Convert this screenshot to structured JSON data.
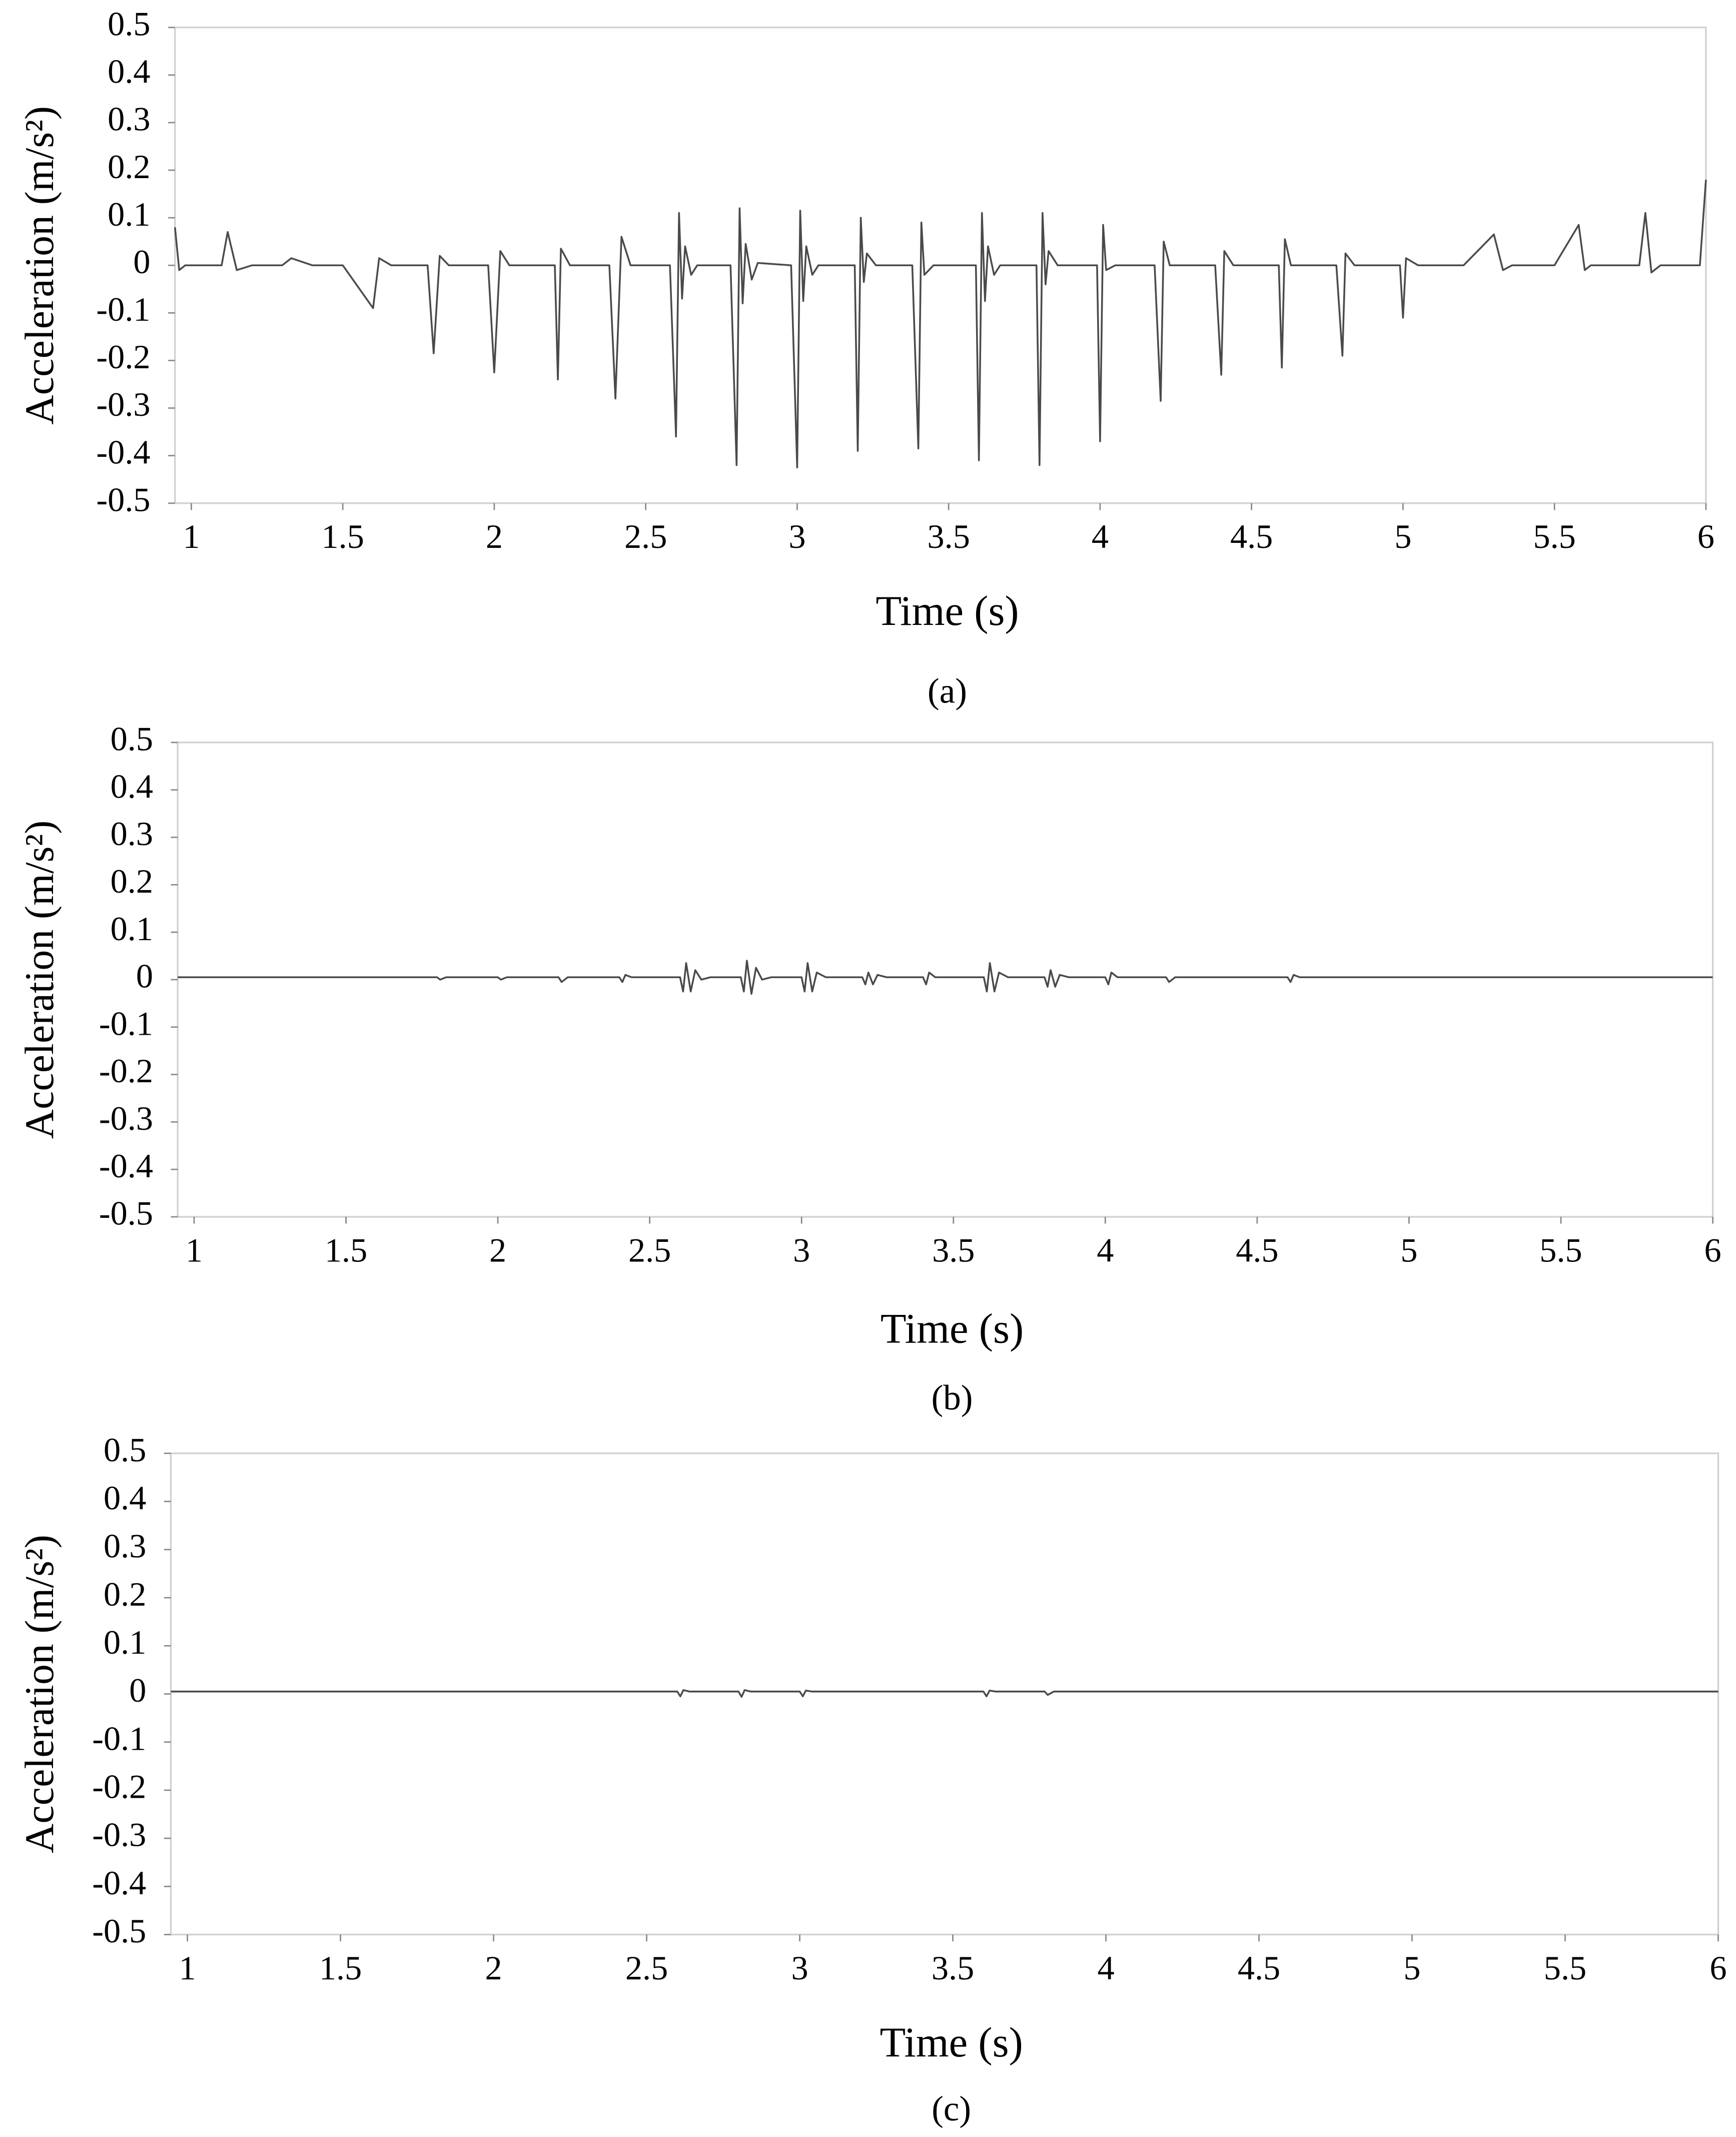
{
  "chart_data": [
    {
      "type": "line",
      "xlabel": "Time (s)",
      "ylabel": "Acceleration (m/s²)",
      "caption": "(a)",
      "color": "#4a4a4a",
      "xlim": [
        0.946,
        6
      ],
      "ylim": [
        -0.5,
        0.5
      ],
      "xticks": [
        1,
        1.5,
        2,
        2.5,
        3,
        3.5,
        4,
        4.5,
        5,
        5.5,
        6
      ],
      "yticks": [
        -0.5,
        -0.4,
        -0.3,
        -0.2,
        -0.1,
        0,
        0.1,
        0.2,
        0.3,
        0.4,
        0.5
      ],
      "x": [
        0.946,
        0.96,
        0.98,
        1.1,
        1.12,
        1.15,
        1.2,
        1.3,
        1.33,
        1.4,
        1.5,
        1.6,
        1.62,
        1.66,
        1.78,
        1.8,
        1.82,
        1.85,
        1.98,
        2.0,
        2.02,
        2.05,
        2.2,
        2.21,
        2.22,
        2.25,
        2.38,
        2.4,
        2.42,
        2.45,
        2.58,
        2.6,
        2.61,
        2.62,
        2.63,
        2.65,
        2.67,
        2.78,
        2.8,
        2.81,
        2.82,
        2.83,
        2.85,
        2.87,
        2.98,
        3.0,
        3.01,
        3.02,
        3.03,
        3.05,
        3.07,
        3.19,
        3.2,
        3.21,
        3.22,
        3.23,
        3.26,
        3.38,
        3.4,
        3.41,
        3.42,
        3.45,
        3.59,
        3.6,
        3.61,
        3.62,
        3.63,
        3.65,
        3.67,
        3.79,
        3.8,
        3.81,
        3.82,
        3.83,
        3.86,
        3.99,
        4.0,
        4.01,
        4.02,
        4.05,
        4.18,
        4.2,
        4.21,
        4.23,
        4.38,
        4.4,
        4.41,
        4.44,
        4.59,
        4.6,
        4.61,
        4.63,
        4.78,
        4.8,
        4.81,
        4.84,
        4.99,
        5.0,
        5.01,
        5.05,
        5.2,
        5.3,
        5.33,
        5.36,
        5.5,
        5.58,
        5.6,
        5.62,
        5.78,
        5.8,
        5.82,
        5.85,
        5.98,
        6.0
      ],
      "values": [
        0.08,
        -0.01,
        0,
        0,
        0.07,
        -0.01,
        0,
        0,
        0.015,
        0,
        0,
        -0.09,
        0.015,
        0,
        0,
        -0.185,
        0.02,
        0,
        0,
        -0.225,
        0.03,
        0,
        0,
        -0.24,
        0.035,
        0,
        0,
        -0.28,
        0.06,
        0,
        0,
        -0.36,
        0.11,
        -0.07,
        0.04,
        -0.02,
        0,
        0,
        -0.42,
        0.12,
        -0.08,
        0.045,
        -0.03,
        0.005,
        0,
        -0.425,
        0.115,
        -0.075,
        0.04,
        -0.02,
        0,
        0,
        -0.39,
        0.1,
        -0.035,
        0.025,
        0,
        0,
        -0.385,
        0.09,
        -0.02,
        0,
        0,
        -0.41,
        0.11,
        -0.075,
        0.04,
        -0.02,
        0,
        0,
        -0.42,
        0.11,
        -0.04,
        0.03,
        0,
        0,
        -0.37,
        0.085,
        -0.01,
        0,
        0,
        -0.285,
        0.05,
        0,
        0,
        -0.23,
        0.03,
        0,
        0,
        -0.215,
        0.055,
        0,
        0,
        -0.19,
        0.025,
        0,
        0,
        -0.11,
        0.015,
        0,
        0,
        0.065,
        -0.01,
        0,
        0,
        0.085,
        -0.01,
        0,
        0,
        0.11,
        -0.015,
        0,
        0,
        0.18
      ]
    },
    {
      "type": "line",
      "xlabel": "Time (s)",
      "ylabel": "Acceleration (m/s²)",
      "caption": "(b)",
      "color": "#4a4a4a",
      "xlim": [
        0.946,
        6
      ],
      "ylim": [
        -0.5,
        0.5
      ],
      "xticks": [
        1,
        1.5,
        2,
        2.5,
        3,
        3.5,
        4,
        4.5,
        5,
        5.5,
        6
      ],
      "yticks": [
        -0.5,
        -0.4,
        -0.3,
        -0.2,
        -0.1,
        0,
        0.1,
        0.2,
        0.3,
        0.4,
        0.5
      ],
      "x": [
        0.946,
        1.8,
        1.81,
        1.83,
        2.0,
        2.01,
        2.03,
        2.2,
        2.21,
        2.23,
        2.4,
        2.41,
        2.42,
        2.44,
        2.6,
        2.61,
        2.62,
        2.635,
        2.65,
        2.67,
        2.7,
        2.8,
        2.81,
        2.82,
        2.835,
        2.85,
        2.87,
        2.9,
        3.0,
        3.01,
        3.02,
        3.035,
        3.05,
        3.08,
        3.2,
        3.21,
        3.22,
        3.235,
        3.25,
        3.28,
        3.4,
        3.41,
        3.42,
        3.44,
        3.6,
        3.61,
        3.62,
        3.635,
        3.65,
        3.68,
        3.8,
        3.81,
        3.82,
        3.835,
        3.85,
        3.88,
        4.0,
        4.01,
        4.02,
        4.04,
        4.2,
        4.21,
        4.23,
        4.6,
        4.61,
        4.62,
        4.64,
        6.0
      ],
      "values": [
        0.005,
        0.005,
        0,
        0.005,
        0.005,
        0,
        0.005,
        0.005,
        -0.005,
        0.005,
        0.005,
        -0.005,
        0.01,
        0.005,
        0.005,
        -0.025,
        0.035,
        -0.025,
        0.02,
        0,
        0.005,
        0.005,
        -0.025,
        0.04,
        -0.03,
        0.025,
        0,
        0.005,
        0.005,
        -0.025,
        0.035,
        -0.025,
        0.015,
        0.005,
        0.005,
        -0.01,
        0.015,
        -0.01,
        0.01,
        0.005,
        0.005,
        -0.01,
        0.015,
        0.005,
        0.005,
        -0.025,
        0.035,
        -0.025,
        0.015,
        0.005,
        0.005,
        -0.015,
        0.02,
        -0.015,
        0.01,
        0.005,
        0.005,
        -0.01,
        0.015,
        0.005,
        0.005,
        -0.005,
        0.005,
        0.005,
        -0.005,
        0.01,
        0.005,
        0.005
      ]
    },
    {
      "type": "line",
      "xlabel": "Time (s)",
      "ylabel": "Acceleration (m/s²)",
      "caption": "(c)",
      "color": "#4a4a4a",
      "xlim": [
        0.946,
        6
      ],
      "ylim": [
        -0.5,
        0.5
      ],
      "xticks": [
        1,
        1.5,
        2,
        2.5,
        3,
        3.5,
        4,
        4.5,
        5,
        5.5,
        6
      ],
      "yticks": [
        -0.5,
        -0.4,
        -0.3,
        -0.2,
        -0.1,
        0,
        0.1,
        0.2,
        0.3,
        0.4,
        0.5
      ],
      "x": [
        0.946,
        2.6,
        2.61,
        2.62,
        2.64,
        2.8,
        2.81,
        2.82,
        2.84,
        3.0,
        3.01,
        3.02,
        3.04,
        3.6,
        3.61,
        3.62,
        3.64,
        3.8,
        3.81,
        3.83,
        6.0
      ],
      "values": [
        0.005,
        0.005,
        -0.005,
        0.008,
        0.005,
        0.005,
        -0.006,
        0.008,
        0.005,
        0.005,
        -0.005,
        0.007,
        0.005,
        0.005,
        -0.005,
        0.007,
        0.005,
        0.005,
        -0.002,
        0.005,
        0.005
      ]
    }
  ]
}
